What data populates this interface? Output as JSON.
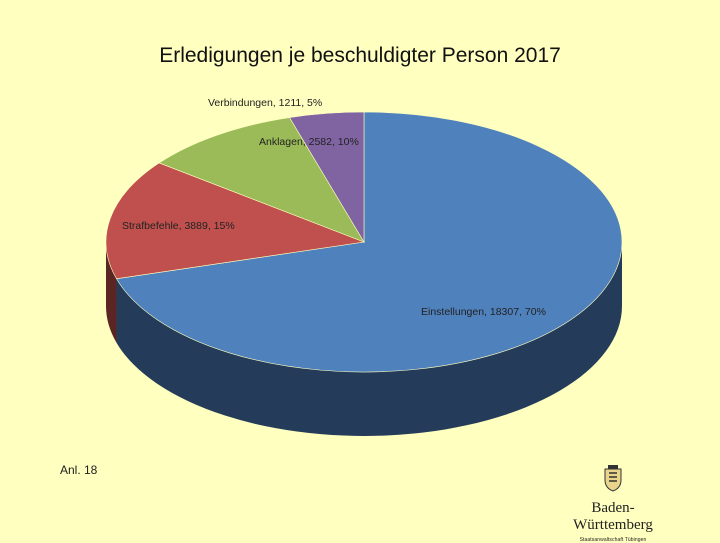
{
  "chart_data": {
    "type": "pie",
    "title": "Erledigungen je beschuldigter Person 2017",
    "slices": [
      {
        "label": "Einstellungen",
        "value": 18307,
        "percent": 70,
        "color": "#4f81bd",
        "side_color": "#243c5a"
      },
      {
        "label": "Strafbefehle",
        "value": 3889,
        "percent": 15,
        "color": "#c0504d",
        "side_color": "#5a2523"
      },
      {
        "label": "Anklagen",
        "value": 2582,
        "percent": 10,
        "color": "#9bbb59",
        "side_color": "#4a5a2a"
      },
      {
        "label": "Verbindungen",
        "value": 1211,
        "percent": 5,
        "color": "#8064a2",
        "side_color": "#3d3050"
      }
    ],
    "slice_label_texts": [
      "Einstellungen, 18307, 70%",
      "Strafbefehle, 3889, 15%",
      "Anklagen, 2582, 10%",
      "Verbindungen, 1211, 5%"
    ]
  },
  "footer": {
    "annex": "Anl. 18",
    "logo_wordmark": "Baden-Württemberg",
    "logo_sub": "Staatsanwaltschaft Tübingen",
    "logo_icon": "coat-of-arms-icon"
  }
}
